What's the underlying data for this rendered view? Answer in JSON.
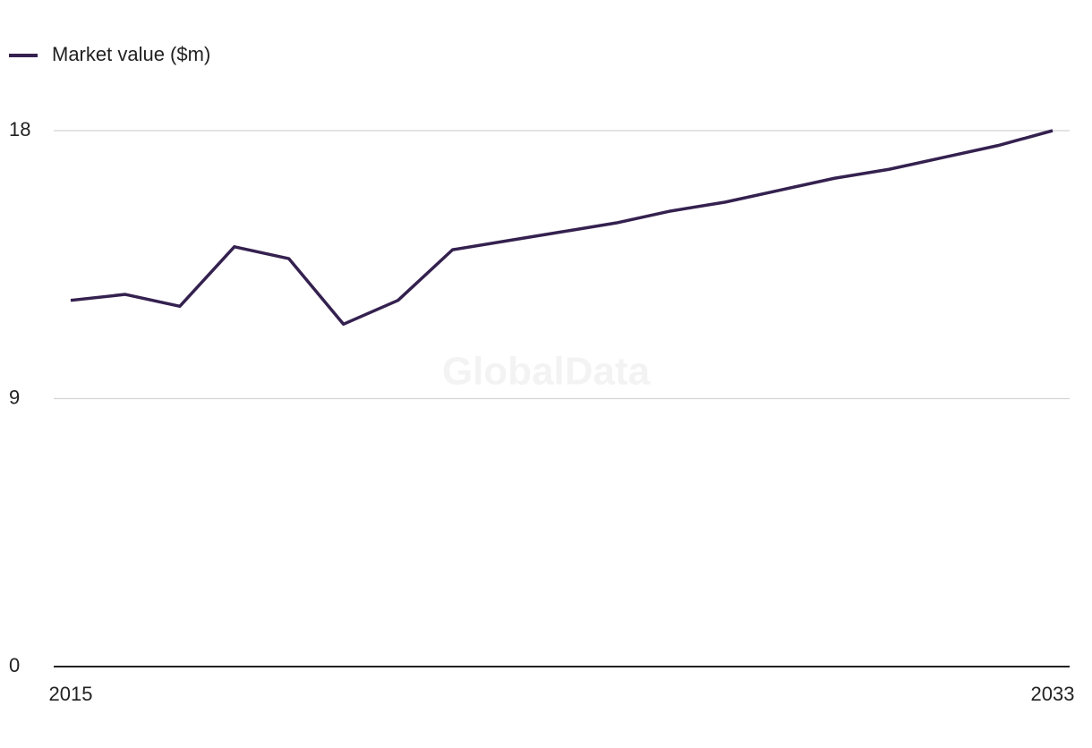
{
  "chart_data": {
    "type": "line",
    "watermark": "GlobalData",
    "x": [
      2015,
      2016,
      2017,
      2018,
      2019,
      2020,
      2021,
      2022,
      2023,
      2024,
      2025,
      2026,
      2027,
      2028,
      2029,
      2030,
      2031,
      2032,
      2033
    ],
    "series": [
      {
        "name": "Market value ($m)",
        "color": "#34214f",
        "values": [
          12.3,
          12.5,
          12.1,
          14.1,
          13.7,
          11.5,
          12.3,
          14.0,
          14.3,
          14.6,
          14.9,
          15.3,
          15.6,
          16.0,
          16.4,
          16.7,
          17.1,
          17.5,
          18.0
        ]
      }
    ],
    "xlim": [
      2015,
      2033
    ],
    "xticks": [
      2015,
      2033
    ],
    "ylim": [
      0,
      18
    ],
    "yticks": [
      0,
      9,
      18
    ],
    "grid": true,
    "legend": "top-left"
  }
}
